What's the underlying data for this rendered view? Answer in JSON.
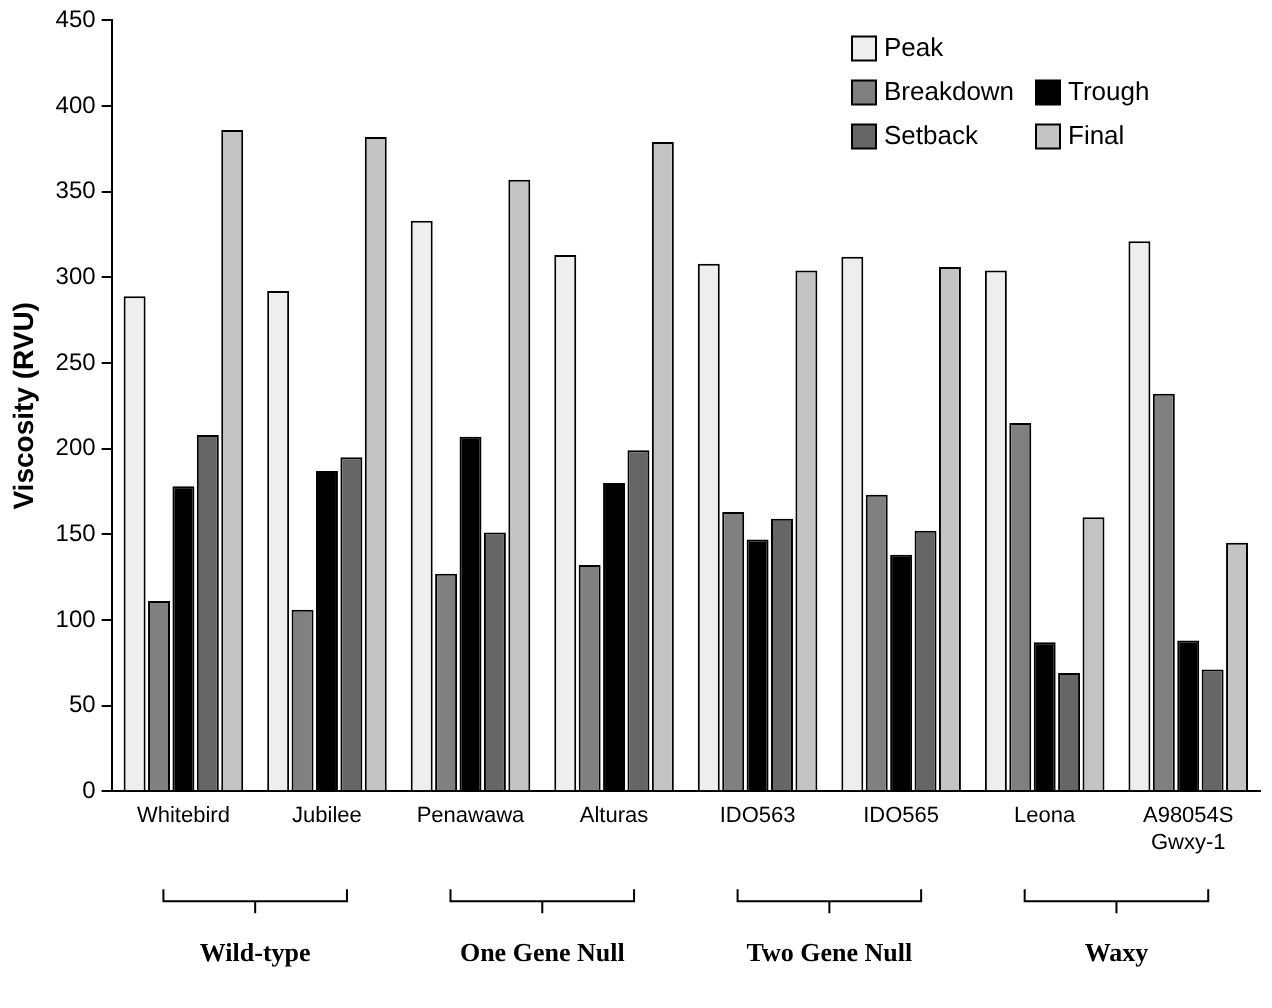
{
  "chart_data": {
    "type": "bar",
    "ylabel": "Viscosity (RVU)",
    "categories": [
      "Whitebird",
      "Jubilee",
      "Penawawa",
      "Alturas",
      "IDO563",
      "IDO565",
      "Leona",
      "A98054S Gwxy-1"
    ],
    "series": [
      {
        "name": "Peak",
        "color": "#eeeeee",
        "values": [
          289,
          292,
          333,
          313,
          308,
          312,
          304,
          321
        ]
      },
      {
        "name": "Breakdown",
        "color": "#808080",
        "values": [
          111,
          106,
          127,
          132,
          163,
          173,
          215,
          232
        ]
      },
      {
        "name": "Trough",
        "color": "#000000",
        "values": [
          178,
          187,
          207,
          180,
          147,
          138,
          87,
          88
        ]
      },
      {
        "name": "Setback",
        "color": "#666666",
        "values": [
          208,
          195,
          151,
          199,
          159,
          152,
          69,
          71
        ]
      },
      {
        "name": "Final",
        "color": "#c4c4c4",
        "values": [
          386,
          382,
          357,
          379,
          304,
          306,
          160,
          145
        ]
      }
    ],
    "ylim": [
      0,
      450
    ],
    "yticks": [
      0,
      50,
      100,
      150,
      200,
      250,
      300,
      350,
      400,
      450
    ],
    "grid": false,
    "legend": "top right",
    "annotations": [
      "Wild-type",
      "One Gene Null",
      "Two Gene Null",
      "Waxy"
    ]
  }
}
